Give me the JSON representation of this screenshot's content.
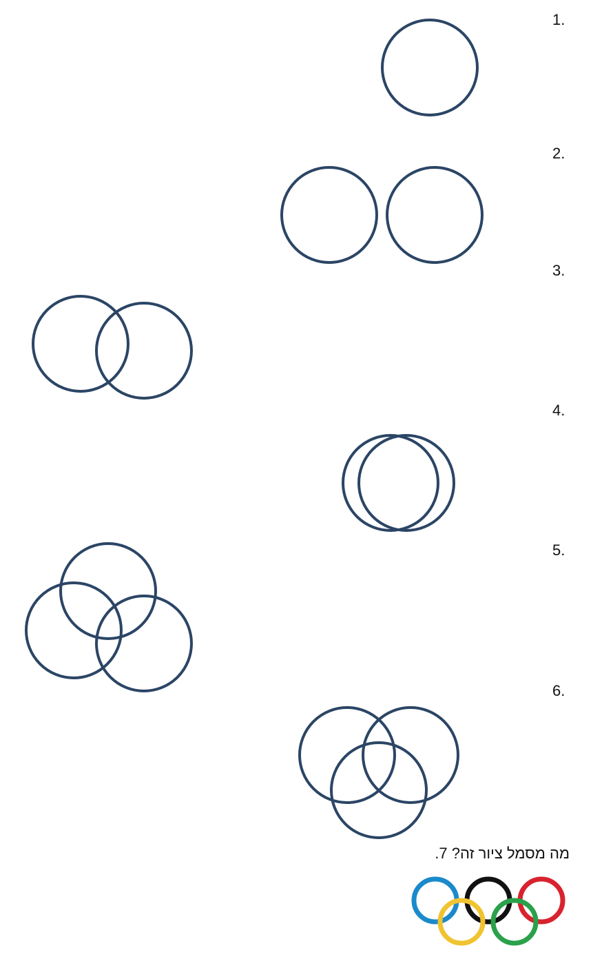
{
  "worksheet": {
    "items": [
      {
        "number": "1.",
        "circles": 1,
        "arrangement": "single"
      },
      {
        "number": "2.",
        "circles": 2,
        "arrangement": "separate"
      },
      {
        "number": "3.",
        "circles": 2,
        "arrangement": "partially-overlapping"
      },
      {
        "number": "4.",
        "circles": 2,
        "arrangement": "mostly-overlapping"
      },
      {
        "number": "5.",
        "circles": 3,
        "arrangement": "triple-overlap"
      },
      {
        "number": "6.",
        "circles": 3,
        "arrangement": "triple-overlap"
      },
      {
        "number": "7.",
        "question": "מה מסמל ציור זה?"
      }
    ],
    "circle_color": "#2b4565",
    "olympic_rings": {
      "icon": "olympic-rings-icon",
      "colors": [
        "#1a8acb",
        "#111111",
        "#d8232f",
        "#f0c330",
        "#2aa14a"
      ]
    }
  }
}
